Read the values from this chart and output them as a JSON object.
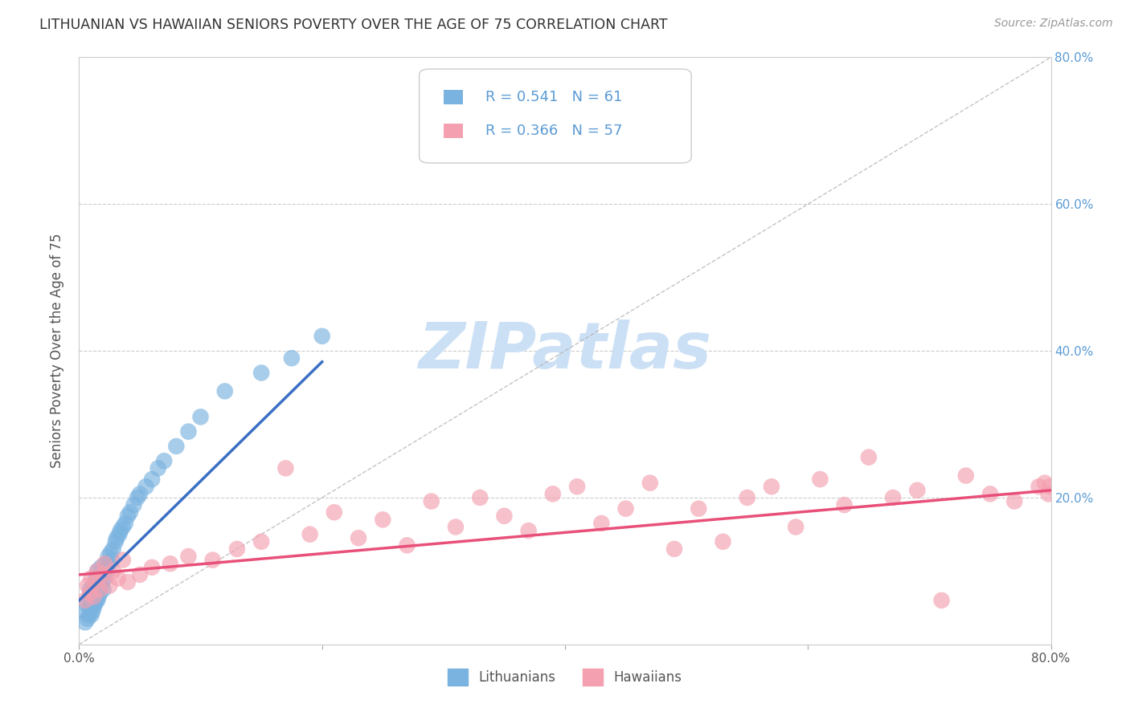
{
  "title": "LITHUANIAN VS HAWAIIAN SENIORS POVERTY OVER THE AGE OF 75 CORRELATION CHART",
  "source": "Source: ZipAtlas.com",
  "ylabel": "Seniors Poverty Over the Age of 75",
  "r_lithuanian": 0.541,
  "n_lithuanian": 61,
  "r_hawaiian": 0.366,
  "n_hawaiian": 57,
  "xlim": [
    0.0,
    0.8
  ],
  "ylim": [
    0.0,
    0.8
  ],
  "color_lithuanian": "#7ab3e0",
  "color_hawaiian": "#f4a0b0",
  "color_line_lithuanian": "#3a6fc4",
  "color_line_hawaiian": "#e8507a",
  "background_color": "#ffffff",
  "watermark": "ZIPatlas",
  "watermark_color": "#cce0f5",
  "lithuanian_x": [
    0.005,
    0.005,
    0.006,
    0.007,
    0.008,
    0.008,
    0.009,
    0.009,
    0.01,
    0.01,
    0.01,
    0.011,
    0.011,
    0.012,
    0.012,
    0.013,
    0.013,
    0.014,
    0.014,
    0.015,
    0.015,
    0.015,
    0.016,
    0.016,
    0.017,
    0.017,
    0.018,
    0.018,
    0.019,
    0.02,
    0.02,
    0.021,
    0.022,
    0.023,
    0.024,
    0.025,
    0.026,
    0.027,
    0.028,
    0.03,
    0.031,
    0.033,
    0.034,
    0.036,
    0.038,
    0.04,
    0.042,
    0.045,
    0.048,
    0.05,
    0.055,
    0.06,
    0.065,
    0.07,
    0.08,
    0.09,
    0.1,
    0.12,
    0.15,
    0.175,
    0.2
  ],
  "lithuanian_y": [
    0.03,
    0.045,
    0.055,
    0.035,
    0.04,
    0.06,
    0.05,
    0.075,
    0.04,
    0.055,
    0.07,
    0.045,
    0.065,
    0.05,
    0.08,
    0.055,
    0.075,
    0.06,
    0.09,
    0.06,
    0.075,
    0.1,
    0.065,
    0.085,
    0.07,
    0.095,
    0.08,
    0.105,
    0.085,
    0.075,
    0.1,
    0.09,
    0.11,
    0.1,
    0.12,
    0.11,
    0.125,
    0.115,
    0.13,
    0.14,
    0.145,
    0.15,
    0.155,
    0.16,
    0.165,
    0.175,
    0.18,
    0.19,
    0.2,
    0.205,
    0.215,
    0.225,
    0.24,
    0.25,
    0.27,
    0.29,
    0.31,
    0.345,
    0.37,
    0.39,
    0.42
  ],
  "hawaiian_x": [
    0.005,
    0.007,
    0.009,
    0.01,
    0.012,
    0.014,
    0.015,
    0.017,
    0.019,
    0.021,
    0.025,
    0.028,
    0.032,
    0.036,
    0.04,
    0.05,
    0.06,
    0.075,
    0.09,
    0.11,
    0.13,
    0.15,
    0.17,
    0.19,
    0.21,
    0.23,
    0.25,
    0.27,
    0.29,
    0.31,
    0.33,
    0.35,
    0.37,
    0.39,
    0.41,
    0.43,
    0.45,
    0.47,
    0.49,
    0.51,
    0.53,
    0.55,
    0.57,
    0.59,
    0.61,
    0.63,
    0.65,
    0.67,
    0.69,
    0.71,
    0.73,
    0.75,
    0.77,
    0.79,
    0.795,
    0.798,
    0.799
  ],
  "hawaiian_y": [
    0.06,
    0.08,
    0.07,
    0.09,
    0.065,
    0.085,
    0.1,
    0.075,
    0.095,
    0.11,
    0.08,
    0.1,
    0.09,
    0.115,
    0.085,
    0.095,
    0.105,
    0.11,
    0.12,
    0.115,
    0.13,
    0.14,
    0.24,
    0.15,
    0.18,
    0.145,
    0.17,
    0.135,
    0.195,
    0.16,
    0.2,
    0.175,
    0.155,
    0.205,
    0.215,
    0.165,
    0.185,
    0.22,
    0.13,
    0.185,
    0.14,
    0.2,
    0.215,
    0.16,
    0.225,
    0.19,
    0.255,
    0.2,
    0.21,
    0.06,
    0.23,
    0.205,
    0.195,
    0.215,
    0.22,
    0.205,
    0.215
  ],
  "lith_line_x0": 0.0,
  "lith_line_y0": 0.06,
  "lith_line_x1": 0.2,
  "lith_line_y1": 0.385,
  "haw_line_x0": 0.0,
  "haw_line_y0": 0.095,
  "haw_line_x1": 0.8,
  "haw_line_y1": 0.21
}
